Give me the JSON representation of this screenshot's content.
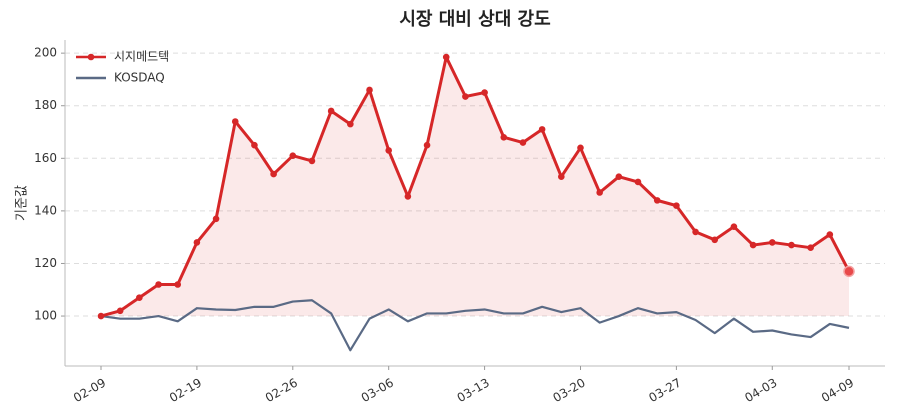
{
  "chart_data": {
    "type": "line",
    "title": "시장 대비 상대 강도",
    "y_label": "기준값",
    "categories": [
      "02-09",
      null,
      null,
      null,
      null,
      "02-19",
      null,
      null,
      null,
      null,
      "02-26",
      null,
      null,
      null,
      null,
      "03-06",
      null,
      null,
      null,
      null,
      "03-13",
      null,
      null,
      null,
      null,
      "03-20",
      null,
      null,
      null,
      null,
      "03-27",
      null,
      null,
      null,
      null,
      "04-03",
      null,
      null,
      null,
      "04-09"
    ],
    "series": [
      {
        "name": "시지메드텍",
        "color": "#d62728",
        "markers": true,
        "fill": true,
        "highlight_last": true,
        "values": [
          100,
          102,
          107,
          112,
          112,
          128,
          137,
          174,
          165,
          154,
          161,
          159,
          178,
          173,
          186,
          163,
          145.5,
          165,
          198.5,
          183.5,
          185,
          168,
          166,
          171,
          153,
          164,
          147,
          153,
          151,
          144,
          142,
          132,
          129,
          134,
          127,
          128,
          127,
          126,
          131,
          117
        ]
      },
      {
        "name": "KOSDAQ",
        "color": "#5a6a85",
        "markers": false,
        "fill": false,
        "highlight_last": false,
        "values": [
          100,
          99,
          99,
          100,
          98,
          103,
          102.5,
          102.3,
          103.5,
          103.5,
          105.5,
          106,
          101,
          87,
          99,
          102.5,
          98,
          101,
          101,
          102,
          102.5,
          101,
          101,
          103.5,
          101.5,
          103,
          97.5,
          100,
          103,
          101,
          101.5,
          98.5,
          93.5,
          99,
          94,
          94.5,
          93,
          92,
          97,
          95.5
        ]
      }
    ],
    "ylim": [
      81,
      205
    ],
    "yticks": [
      100,
      120,
      140,
      160,
      180,
      200
    ],
    "grid": true,
    "legend": "upper-left"
  }
}
